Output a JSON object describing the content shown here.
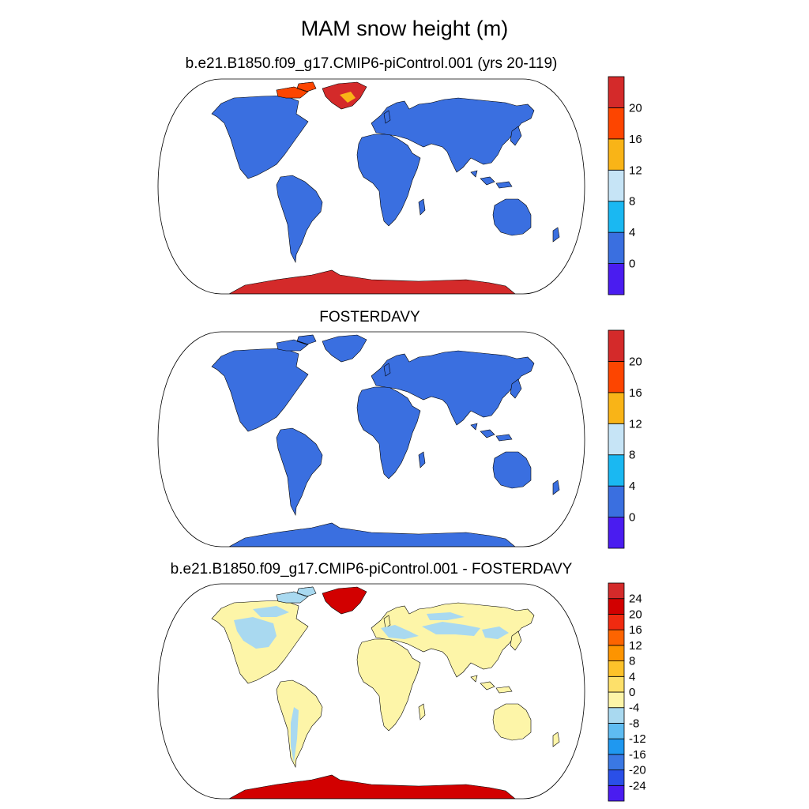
{
  "title": "MAM snow height (m)",
  "panels": [
    {
      "title": "b.e21.B1850.f09_g17.CMIP6-piControl.001 (yrs 20-119)",
      "colorbar": {
        "colors": [
          "#4a1cf0",
          "#3a6fe0",
          "#1ab8f2",
          "#c6e4f6",
          "#f9b417",
          "#fd4500",
          "#d42a2a"
        ],
        "labels": [
          "0",
          "4",
          "8",
          "12",
          "16",
          "20"
        ]
      },
      "fills": {
        "land": "#3a6fe0",
        "greenland": "#d42a2a",
        "antarctica": "#d42a2a",
        "accent": "#fd4500"
      }
    },
    {
      "title": "FOSTERDAVY",
      "colorbar": {
        "colors": [
          "#4a1cf0",
          "#3a6fe0",
          "#1ab8f2",
          "#c6e4f6",
          "#f9b417",
          "#fd4500",
          "#d42a2a"
        ],
        "labels": [
          "0",
          "4",
          "8",
          "12",
          "16",
          "20"
        ]
      },
      "fills": {
        "land": "#3a6fe0",
        "greenland": "#3a6fe0",
        "antarctica": "#3a6fe0",
        "accent": "#3a6fe0"
      }
    },
    {
      "title": "b.e21.B1850.f09_g17.CMIP6-piControl.001 - FOSTERDAVY",
      "colorbar": {
        "colors": [
          "#4a1cf0",
          "#2a4fe8",
          "#3a78e4",
          "#1f98f0",
          "#5ebcf2",
          "#a9d9f0",
          "#fdf5a8",
          "#fde06a",
          "#fdc22a",
          "#fd9400",
          "#fd6400",
          "#f02a10",
          "#d20000",
          "#d42a2a"
        ],
        "labels": [
          "-24",
          "-20",
          "-16",
          "-12",
          "-8",
          "-4",
          "0",
          "4",
          "8",
          "12",
          "16",
          "20",
          "24"
        ]
      },
      "fills": {
        "land": "#fdf5a8",
        "greenland": "#d20000",
        "antarctica": "#d20000",
        "accent": "#a9d9f0"
      }
    }
  ]
}
